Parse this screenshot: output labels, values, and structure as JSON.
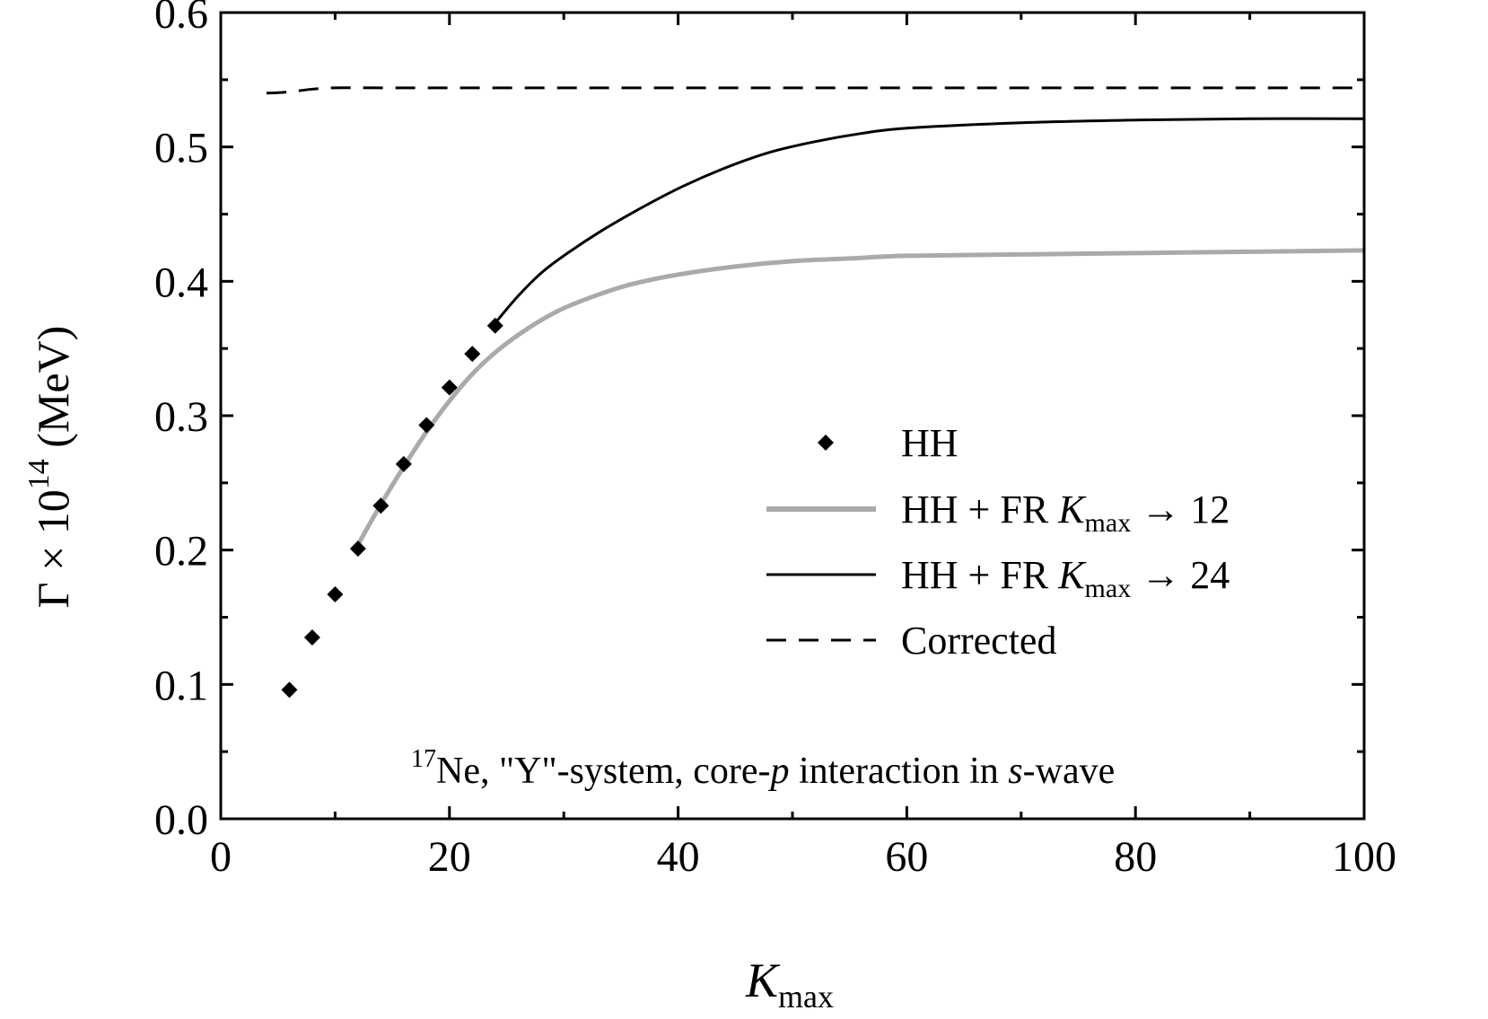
{
  "chart_data": {
    "type": "line",
    "annotation": {
      "sup": "17",
      "part1": "Ne, \"Y\"-system,  core-",
      "p": "p",
      "part2": " interaction in ",
      "s": "s",
      "part3": "-wave"
    },
    "xlabel": {
      "main": "K",
      "sub": "max"
    },
    "ylabel": {
      "pre": "Γ × 10",
      "sup": "14",
      "post": "  (MeV)"
    },
    "xlim": [
      0,
      100
    ],
    "ylim": [
      0.0,
      0.6
    ],
    "xticks": [
      0,
      20,
      40,
      60,
      80,
      100
    ],
    "yticks": [
      0.0,
      0.1,
      0.2,
      0.3,
      0.4,
      0.5,
      0.6
    ],
    "xtick_labels": [
      "0",
      "20",
      "40",
      "60",
      "80",
      "100"
    ],
    "ytick_labels": [
      "0.0",
      "0.1",
      "0.2",
      "0.3",
      "0.4",
      "0.5",
      "0.6"
    ],
    "xminor_step": 10,
    "yminor_step": 0.05,
    "grid": false,
    "legend_position": "center-right",
    "series": [
      {
        "name": "HH",
        "style": "markers",
        "marker": "diamond",
        "color": "#000000",
        "x": [
          6,
          8,
          10,
          12,
          14,
          16,
          18,
          20,
          22,
          24
        ],
        "y": [
          0.096,
          0.135,
          0.167,
          0.201,
          0.233,
          0.264,
          0.293,
          0.321,
          0.346,
          0.367
        ]
      },
      {
        "name": "HH + FR  K_max → 12",
        "legend": {
          "pre": "HH + FR  ",
          "k": "K",
          "sub": "max",
          "post": "  →  12"
        },
        "style": "line",
        "color": "#aaaaaa",
        "width": 5,
        "x": [
          12,
          14,
          16,
          18,
          20,
          22,
          24,
          26,
          28,
          30,
          33,
          36,
          40,
          45,
          50,
          55,
          60,
          70,
          80,
          90,
          100
        ],
        "y": [
          0.204,
          0.234,
          0.262,
          0.288,
          0.311,
          0.331,
          0.347,
          0.36,
          0.371,
          0.38,
          0.39,
          0.398,
          0.405,
          0.411,
          0.415,
          0.417,
          0.419,
          0.42,
          0.421,
          0.422,
          0.423
        ]
      },
      {
        "name": "HH + FR  K_max → 24",
        "legend": {
          "pre": "HH + FR  ",
          "k": "K",
          "sub": "max",
          "post": "  →  24"
        },
        "style": "line",
        "color": "#000000",
        "width": 3,
        "x": [
          24,
          26,
          28,
          30,
          33,
          36,
          40,
          44,
          48,
          52,
          56,
          60,
          70,
          80,
          90,
          100
        ],
        "y": [
          0.369,
          0.389,
          0.406,
          0.419,
          0.436,
          0.451,
          0.469,
          0.484,
          0.496,
          0.504,
          0.51,
          0.514,
          0.518,
          0.52,
          0.521,
          0.521
        ]
      },
      {
        "name": "Corrected",
        "style": "dashed",
        "color": "#000000",
        "width": 3,
        "x": [
          4,
          6,
          8,
          10,
          14,
          20,
          30,
          40,
          60,
          80,
          100
        ],
        "y": [
          0.54,
          0.541,
          0.543,
          0.544,
          0.544,
          0.544,
          0.544,
          0.544,
          0.544,
          0.544,
          0.544
        ]
      }
    ]
  }
}
